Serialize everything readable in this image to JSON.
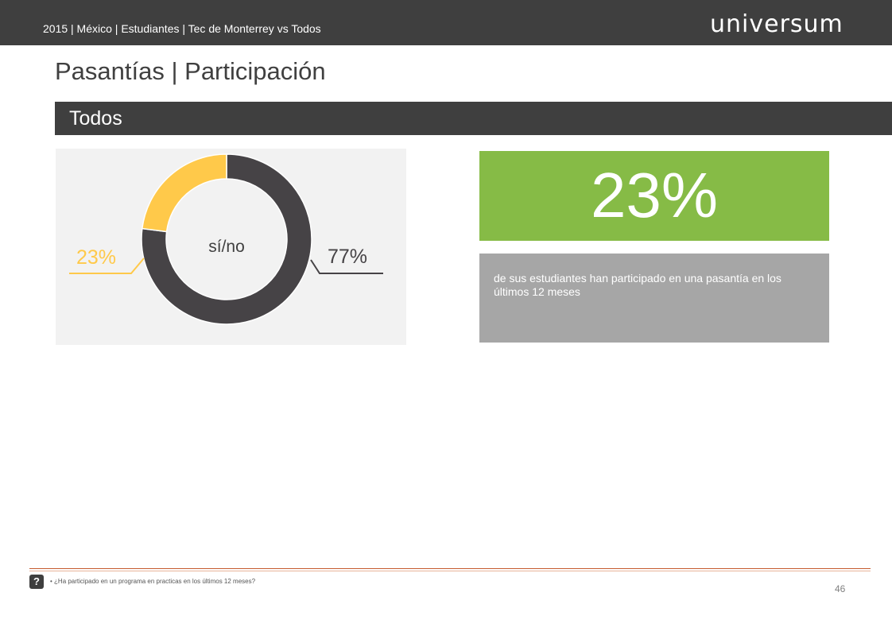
{
  "header": {
    "subtitle": "2015 | México | Estudiantes | Tec de Monterrey vs Todos",
    "logo_text": "universum"
  },
  "page_title": "Pasantías | Participación",
  "section": {
    "label": "Todos"
  },
  "chart_data": {
    "type": "pie",
    "center_label": "sí/no",
    "slices": [
      {
        "label": "23%",
        "value": 23,
        "color": "#ffc94a"
      },
      {
        "label": "77%",
        "value": 77,
        "color": "#464346"
      }
    ]
  },
  "kpi": {
    "value": "23%",
    "description": "de sus estudiantes han participado en una pasantía en los últimos 12 meses"
  },
  "colors": {
    "dark_bar": "#3f3f3f",
    "kpi_green": "#86bb46",
    "desc_gray": "#a6a6a6",
    "accent_orange": "#c55a2d"
  },
  "footer": {
    "help_icon": "?",
    "footnote": "•  ¿Ha participado en un programa en practicas en los últimos 12 meses?",
    "page_number": "46"
  }
}
